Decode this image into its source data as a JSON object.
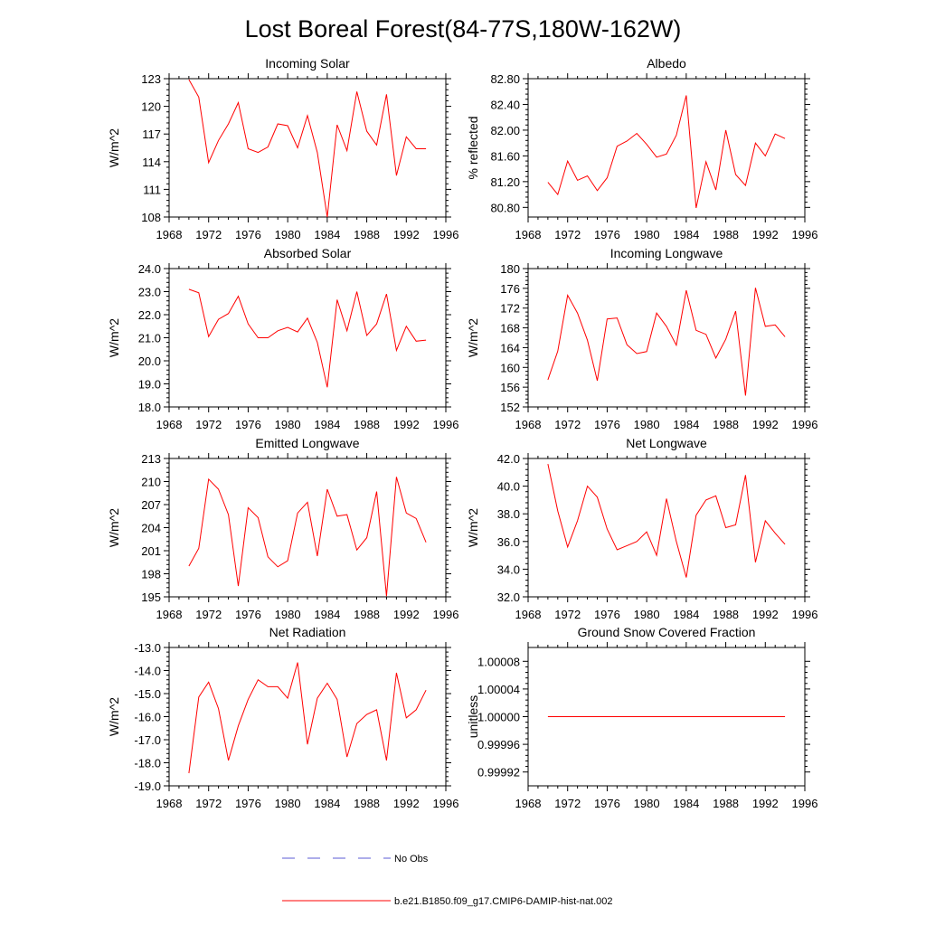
{
  "page_title": "Lost Boreal Forest(84-77S,180W-162W)",
  "legend": {
    "items": [
      {
        "label": "No Obs",
        "color": "#5b5bd6",
        "style": "dashed"
      },
      {
        "label": "b.e21.B1850.f09_g17.CMIP6-DAMIP-hist-nat.002",
        "color": "#ff0000",
        "style": "solid"
      }
    ]
  },
  "chart_data": [
    {
      "type": "line",
      "title": "Incoming Solar",
      "xlabel": "",
      "ylabel": "W/m^2",
      "xlim": [
        1968,
        1996
      ],
      "xticks": [
        "1968",
        "1972",
        "1976",
        "1980",
        "1984",
        "1988",
        "1992",
        "1996"
      ],
      "ylim": [
        108,
        123
      ],
      "yticks": [
        "108",
        "111",
        "114",
        "117",
        "120",
        "123"
      ],
      "series": [
        {
          "color": "#ff0000",
          "x": [
            1970,
            1971,
            1972,
            1973,
            1974,
            1975,
            1976,
            1977,
            1978,
            1979,
            1980,
            1981,
            1982,
            1983,
            1984,
            1985,
            1986,
            1987,
            1988,
            1989,
            1990,
            1991,
            1992,
            1993,
            1994
          ],
          "values": [
            122.9,
            121.0,
            113.9,
            116.3,
            118.1,
            120.4,
            115.4,
            115.0,
            115.6,
            118.1,
            117.9,
            115.5,
            119.0,
            115.0,
            108.0,
            118.0,
            115.2,
            121.6,
            117.3,
            115.8,
            121.3,
            112.5,
            116.7,
            115.4,
            115.4
          ]
        }
      ]
    },
    {
      "type": "line",
      "title": "Albedo",
      "xlabel": "",
      "ylabel": "% reflected",
      "xlim": [
        1968,
        1996
      ],
      "xticks": [
        "1968",
        "1972",
        "1976",
        "1980",
        "1984",
        "1988",
        "1992",
        "1996"
      ],
      "ylim": [
        80.65,
        82.8
      ],
      "yticks": [
        "80.80",
        "81.20",
        "81.60",
        "82.00",
        "82.40",
        "82.80"
      ],
      "series": [
        {
          "color": "#ff0000",
          "x": [
            1970,
            1971,
            1972,
            1973,
            1974,
            1975,
            1976,
            1977,
            1978,
            1979,
            1980,
            1981,
            1982,
            1983,
            1984,
            1985,
            1986,
            1987,
            1988,
            1989,
            1990,
            1991,
            1992,
            1993,
            1994
          ],
          "values": [
            81.19,
            81.0,
            81.52,
            81.22,
            81.29,
            81.06,
            81.26,
            81.75,
            81.83,
            81.95,
            81.78,
            81.58,
            81.63,
            81.92,
            82.54,
            80.79,
            81.51,
            81.07,
            82.0,
            81.31,
            81.14,
            81.8,
            81.6,
            81.94,
            81.87
          ]
        }
      ]
    },
    {
      "type": "line",
      "title": "Absorbed Solar",
      "xlabel": "",
      "ylabel": "W/m^2",
      "xlim": [
        1968,
        1996
      ],
      "xticks": [
        "1968",
        "1972",
        "1976",
        "1980",
        "1984",
        "1988",
        "1992",
        "1996"
      ],
      "ylim": [
        18.0,
        24.0
      ],
      "yticks": [
        "18.0",
        "19.0",
        "20.0",
        "21.0",
        "22.0",
        "23.0",
        "24.0"
      ],
      "series": [
        {
          "color": "#ff0000",
          "x": [
            1970,
            1971,
            1972,
            1973,
            1974,
            1975,
            1976,
            1977,
            1978,
            1979,
            1980,
            1981,
            1982,
            1983,
            1984,
            1985,
            1986,
            1987,
            1988,
            1989,
            1990,
            1991,
            1992,
            1993,
            1994
          ],
          "values": [
            23.1,
            22.95,
            21.05,
            21.8,
            22.05,
            22.8,
            21.6,
            21.0,
            21.0,
            21.3,
            21.45,
            21.25,
            21.85,
            20.8,
            18.85,
            22.65,
            21.3,
            23.0,
            21.1,
            21.6,
            22.9,
            20.45,
            21.5,
            20.85,
            20.9
          ]
        }
      ]
    },
    {
      "type": "line",
      "title": "Incoming Longwave",
      "xlabel": "",
      "ylabel": "W/m^2",
      "xlim": [
        1968,
        1996
      ],
      "xticks": [
        "1968",
        "1972",
        "1976",
        "1980",
        "1984",
        "1988",
        "1992",
        "1996"
      ],
      "ylim": [
        152,
        180
      ],
      "yticks": [
        "152",
        "156",
        "160",
        "164",
        "168",
        "172",
        "176",
        "180"
      ],
      "series": [
        {
          "color": "#ff0000",
          "x": [
            1970,
            1971,
            1972,
            1973,
            1974,
            1975,
            1976,
            1977,
            1978,
            1979,
            1980,
            1981,
            1982,
            1983,
            1984,
            1985,
            1986,
            1987,
            1988,
            1989,
            1990,
            1991,
            1992,
            1993,
            1994
          ],
          "values": [
            157.5,
            163.3,
            174.6,
            171.0,
            165.5,
            157.3,
            169.8,
            170.0,
            164.6,
            162.8,
            163.2,
            171.0,
            168.3,
            164.5,
            175.6,
            167.5,
            166.7,
            161.9,
            165.7,
            171.4,
            154.3,
            176.1,
            168.3,
            168.6,
            166.2
          ]
        }
      ]
    },
    {
      "type": "line",
      "title": "Emitted Longwave",
      "xlabel": "",
      "ylabel": "W/m^2",
      "xlim": [
        1968,
        1996
      ],
      "xticks": [
        "1968",
        "1972",
        "1976",
        "1980",
        "1984",
        "1988",
        "1992",
        "1996"
      ],
      "ylim": [
        195,
        213
      ],
      "yticks": [
        "195",
        "198",
        "201",
        "204",
        "207",
        "210",
        "213"
      ],
      "series": [
        {
          "color": "#ff0000",
          "x": [
            1970,
            1971,
            1972,
            1973,
            1974,
            1975,
            1976,
            1977,
            1978,
            1979,
            1980,
            1981,
            1982,
            1983,
            1984,
            1985,
            1986,
            1987,
            1988,
            1989,
            1990,
            1991,
            1992,
            1993,
            1994
          ],
          "values": [
            199.0,
            201.3,
            210.3,
            209.0,
            205.7,
            196.4,
            206.6,
            205.3,
            200.2,
            198.9,
            199.7,
            205.9,
            207.3,
            200.3,
            209.0,
            205.5,
            205.7,
            201.1,
            202.7,
            208.7,
            195.1,
            210.6,
            205.9,
            205.2,
            202.1
          ]
        }
      ]
    },
    {
      "type": "line",
      "title": "Net Longwave",
      "xlabel": "",
      "ylabel": "W/m^2",
      "xlim": [
        1968,
        1996
      ],
      "xticks": [
        "1968",
        "1972",
        "1976",
        "1980",
        "1984",
        "1988",
        "1992",
        "1996"
      ],
      "ylim": [
        32.0,
        42.0
      ],
      "yticks": [
        "32.0",
        "34.0",
        "36.0",
        "38.0",
        "40.0",
        "42.0"
      ],
      "series": [
        {
          "color": "#ff0000",
          "x": [
            1970,
            1971,
            1972,
            1973,
            1974,
            1975,
            1976,
            1977,
            1978,
            1979,
            1980,
            1981,
            1982,
            1983,
            1984,
            1985,
            1986,
            1987,
            1988,
            1989,
            1990,
            1991,
            1992,
            1993,
            1994
          ],
          "values": [
            41.6,
            38.2,
            35.6,
            37.5,
            40.0,
            39.2,
            36.9,
            35.4,
            35.7,
            36.0,
            36.7,
            35.0,
            39.1,
            36.0,
            33.4,
            37.9,
            39.0,
            39.3,
            37.0,
            37.2,
            40.8,
            34.5,
            37.5,
            36.6,
            35.8
          ]
        }
      ]
    },
    {
      "type": "line",
      "title": "Net Radiation",
      "xlabel": "",
      "ylabel": "W/m^2",
      "xlim": [
        1968,
        1996
      ],
      "xticks": [
        "1968",
        "1972",
        "1976",
        "1980",
        "1984",
        "1988",
        "1992",
        "1996"
      ],
      "ylim": [
        -19.0,
        -13.0
      ],
      "yticks": [
        "-19.0",
        "-18.0",
        "-17.0",
        "-16.0",
        "-15.0",
        "-14.0",
        "-13.0"
      ],
      "series": [
        {
          "color": "#ff0000",
          "x": [
            1970,
            1971,
            1972,
            1973,
            1974,
            1975,
            1976,
            1977,
            1978,
            1979,
            1980,
            1981,
            1982,
            1983,
            1984,
            1985,
            1986,
            1987,
            1988,
            1989,
            1990,
            1991,
            1992,
            1993,
            1994
          ],
          "values": [
            -18.45,
            -15.15,
            -14.5,
            -15.65,
            -17.9,
            -16.4,
            -15.25,
            -14.4,
            -14.7,
            -14.7,
            -15.2,
            -13.65,
            -17.2,
            -15.2,
            -14.55,
            -15.25,
            -17.75,
            -16.3,
            -15.9,
            -15.7,
            -17.9,
            -14.1,
            -16.05,
            -15.7,
            -14.85
          ]
        }
      ]
    },
    {
      "type": "line",
      "title": "Ground Snow Covered Fraction",
      "xlabel": "",
      "ylabel": "unitless",
      "xlim": [
        1968,
        1996
      ],
      "xticks": [
        "1968",
        "1972",
        "1976",
        "1980",
        "1984",
        "1988",
        "1992",
        "1996"
      ],
      "ylim": [
        0.9999,
        1.0001
      ],
      "yticks": [
        "0.99992",
        "0.99996",
        "1.00000",
        "1.00004",
        "1.00008"
      ],
      "ytick_values": [
        0.99992,
        0.99996,
        1.0,
        1.00004,
        1.00008
      ],
      "series": [
        {
          "color": "#ff0000",
          "x": [
            1970,
            1971,
            1972,
            1973,
            1974,
            1975,
            1976,
            1977,
            1978,
            1979,
            1980,
            1981,
            1982,
            1983,
            1984,
            1985,
            1986,
            1987,
            1988,
            1989,
            1990,
            1991,
            1992,
            1993,
            1994
          ],
          "values": [
            1,
            1,
            1,
            1,
            1,
            1,
            1,
            1,
            1,
            1,
            1,
            1,
            1,
            1,
            1,
            1,
            1,
            1,
            1,
            1,
            1,
            1,
            1,
            1,
            1
          ]
        }
      ]
    }
  ]
}
